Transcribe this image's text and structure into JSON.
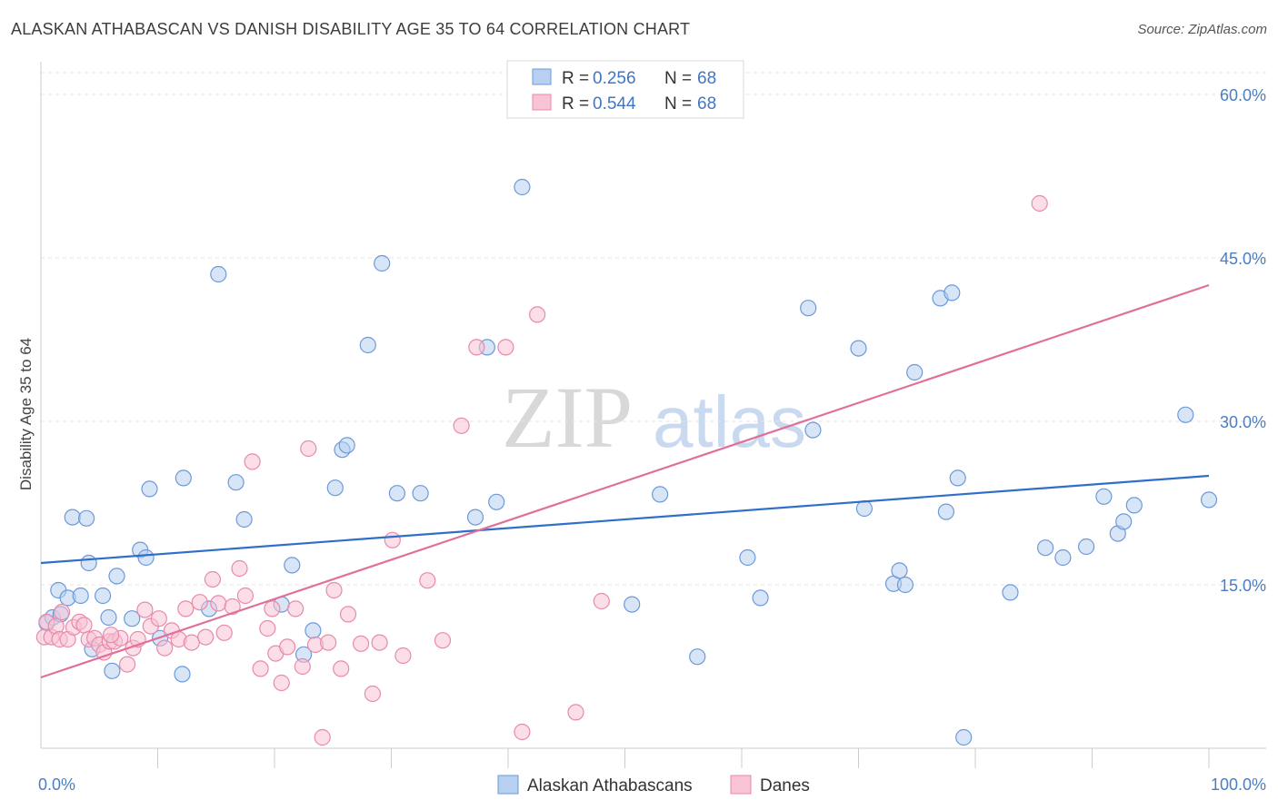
{
  "title": "ALASKAN ATHABASCAN VS DANISH DISABILITY AGE 35 TO 64 CORRELATION CHART",
  "source": "Source: ZipAtlas.com",
  "watermark": {
    "zip": "ZIP",
    "atlas": "atlas"
  },
  "legend_top": [
    {
      "r_label": "R =",
      "r_value": "0.256",
      "n_label": "N =",
      "n_value": "68",
      "fill": "#b7cff0",
      "stroke": "#6c9ad8"
    },
    {
      "r_label": "R =",
      "r_value": "0.544",
      "n_label": "N =",
      "n_value": "68",
      "fill": "#f8c3d4",
      "stroke": "#e88aaa"
    }
  ],
  "legend_bottom": [
    {
      "label": "Alaskan Athabascans",
      "fill": "#b7cff0",
      "stroke": "#6c9ad8"
    },
    {
      "label": "Danes",
      "fill": "#f8c3d4",
      "stroke": "#e88aaa"
    }
  ],
  "chart_data": {
    "type": "scatter",
    "title": "ALASKAN ATHABASCAN VS DANISH DISABILITY AGE 35 TO 64 CORRELATION CHART",
    "xlabel": "",
    "ylabel": "Disability Age 35 to 64",
    "xlim": [
      0,
      100
    ],
    "ylim": [
      0,
      60
    ],
    "x_tick_labels": [
      {
        "value": 0,
        "label": "0.0%"
      },
      {
        "value": 100,
        "label": "100.0%"
      }
    ],
    "x_minor_ticks": [
      10,
      20,
      30,
      40,
      50,
      60,
      70,
      80,
      90,
      100
    ],
    "y_ticks": [
      {
        "value": 15,
        "label": "15.0%"
      },
      {
        "value": 30,
        "label": "30.0%"
      },
      {
        "value": 45,
        "label": "45.0%"
      },
      {
        "value": 60,
        "label": "60.0%"
      }
    ],
    "series": [
      {
        "name": "Alaskan Athabascans",
        "color": "#6c9ad8",
        "fill": "#b7cff0",
        "line_color": "#2f6fc9",
        "trend": [
          [
            0,
            17.0
          ],
          [
            100,
            25.0
          ]
        ],
        "points": [
          [
            0.5,
            11.5
          ],
          [
            1.0,
            12.0
          ],
          [
            1.5,
            14.5
          ],
          [
            1.7,
            12.3
          ],
          [
            2.3,
            13.8
          ],
          [
            2.7,
            21.2
          ],
          [
            3.4,
            14.0
          ],
          [
            3.9,
            21.1
          ],
          [
            4.1,
            17.0
          ],
          [
            4.4,
            9.1
          ],
          [
            5.3,
            14.0
          ],
          [
            5.8,
            12.0
          ],
          [
            6.1,
            7.1
          ],
          [
            6.5,
            15.8
          ],
          [
            7.8,
            11.9
          ],
          [
            8.5,
            18.2
          ],
          [
            9.0,
            17.5
          ],
          [
            9.3,
            23.8
          ],
          [
            10.2,
            10.1
          ],
          [
            12.1,
            6.8
          ],
          [
            12.2,
            24.8
          ],
          [
            14.4,
            12.8
          ],
          [
            15.2,
            43.5
          ],
          [
            16.7,
            24.4
          ],
          [
            17.4,
            21.0
          ],
          [
            20.6,
            13.2
          ],
          [
            21.5,
            16.8
          ],
          [
            22.5,
            8.6
          ],
          [
            23.3,
            10.8
          ],
          [
            25.2,
            23.9
          ],
          [
            25.8,
            27.4
          ],
          [
            26.2,
            27.8
          ],
          [
            28.0,
            37.0
          ],
          [
            29.2,
            44.5
          ],
          [
            30.5,
            23.4
          ],
          [
            32.5,
            23.4
          ],
          [
            37.2,
            21.2
          ],
          [
            38.2,
            36.8
          ],
          [
            39.0,
            22.6
          ],
          [
            41.2,
            51.5
          ],
          [
            50.6,
            13.2
          ],
          [
            53.0,
            23.3
          ],
          [
            56.2,
            8.4
          ],
          [
            60.5,
            17.5
          ],
          [
            61.6,
            13.8
          ],
          [
            65.7,
            40.4
          ],
          [
            66.1,
            29.2
          ],
          [
            70.0,
            36.7
          ],
          [
            70.5,
            22.0
          ],
          [
            73.0,
            15.1
          ],
          [
            73.5,
            16.3
          ],
          [
            74.0,
            15.0
          ],
          [
            74.8,
            34.5
          ],
          [
            77.0,
            41.3
          ],
          [
            77.5,
            21.7
          ],
          [
            78.0,
            41.8
          ],
          [
            78.5,
            24.8
          ],
          [
            79.0,
            1.0
          ],
          [
            83.0,
            14.3
          ],
          [
            86.0,
            18.4
          ],
          [
            87.5,
            17.5
          ],
          [
            89.5,
            18.5
          ],
          [
            91.0,
            23.1
          ],
          [
            92.2,
            19.7
          ],
          [
            92.7,
            20.8
          ],
          [
            93.6,
            22.3
          ],
          [
            98.0,
            30.6
          ],
          [
            100.0,
            22.8
          ]
        ]
      },
      {
        "name": "Danes",
        "color": "#e88aaa",
        "fill": "#f8c3d4",
        "line_color": "#e0709b",
        "trend": [
          [
            0,
            6.5
          ],
          [
            100,
            42.5
          ]
        ],
        "points": [
          [
            0.3,
            10.2
          ],
          [
            0.5,
            11.6
          ],
          [
            0.9,
            10.2
          ],
          [
            1.3,
            11.2
          ],
          [
            1.6,
            10.0
          ],
          [
            2.3,
            10.0
          ],
          [
            2.8,
            11.1
          ],
          [
            3.3,
            11.6
          ],
          [
            3.7,
            11.3
          ],
          [
            4.1,
            10.0
          ],
          [
            4.6,
            10.1
          ],
          [
            5.0,
            9.5
          ],
          [
            5.4,
            8.8
          ],
          [
            5.9,
            9.8
          ],
          [
            6.3,
            9.8
          ],
          [
            6.8,
            10.1
          ],
          [
            7.4,
            7.7
          ],
          [
            7.9,
            9.2
          ],
          [
            8.3,
            10.0
          ],
          [
            8.9,
            12.7
          ],
          [
            9.4,
            11.2
          ],
          [
            10.1,
            11.9
          ],
          [
            10.6,
            9.2
          ],
          [
            11.2,
            10.8
          ],
          [
            11.8,
            10.0
          ],
          [
            12.4,
            12.8
          ],
          [
            12.9,
            9.7
          ],
          [
            13.6,
            13.4
          ],
          [
            14.1,
            10.2
          ],
          [
            14.7,
            15.5
          ],
          [
            15.2,
            13.3
          ],
          [
            15.7,
            10.6
          ],
          [
            16.4,
            13.0
          ],
          [
            17.0,
            16.5
          ],
          [
            17.5,
            14.0
          ],
          [
            18.1,
            26.3
          ],
          [
            18.8,
            7.3
          ],
          [
            19.4,
            11.0
          ],
          [
            20.1,
            8.7
          ],
          [
            20.6,
            6.0
          ],
          [
            21.1,
            9.3
          ],
          [
            21.8,
            12.8
          ],
          [
            22.4,
            7.5
          ],
          [
            22.9,
            27.5
          ],
          [
            23.5,
            9.5
          ],
          [
            24.1,
            1.0
          ],
          [
            24.6,
            9.7
          ],
          [
            25.1,
            14.5
          ],
          [
            25.7,
            7.3
          ],
          [
            26.3,
            12.3
          ],
          [
            27.4,
            9.6
          ],
          [
            28.4,
            5.0
          ],
          [
            29.0,
            9.7
          ],
          [
            30.1,
            19.1
          ],
          [
            31.0,
            8.5
          ],
          [
            33.1,
            15.4
          ],
          [
            34.4,
            9.9
          ],
          [
            36.0,
            29.6
          ],
          [
            37.3,
            36.8
          ],
          [
            39.8,
            36.8
          ],
          [
            41.2,
            1.5
          ],
          [
            42.5,
            39.8
          ],
          [
            45.8,
            3.3
          ],
          [
            48.0,
            13.5
          ],
          [
            85.5,
            50.0
          ],
          [
            1.8,
            12.5
          ],
          [
            6.0,
            10.4
          ],
          [
            19.8,
            12.8
          ]
        ]
      }
    ]
  }
}
